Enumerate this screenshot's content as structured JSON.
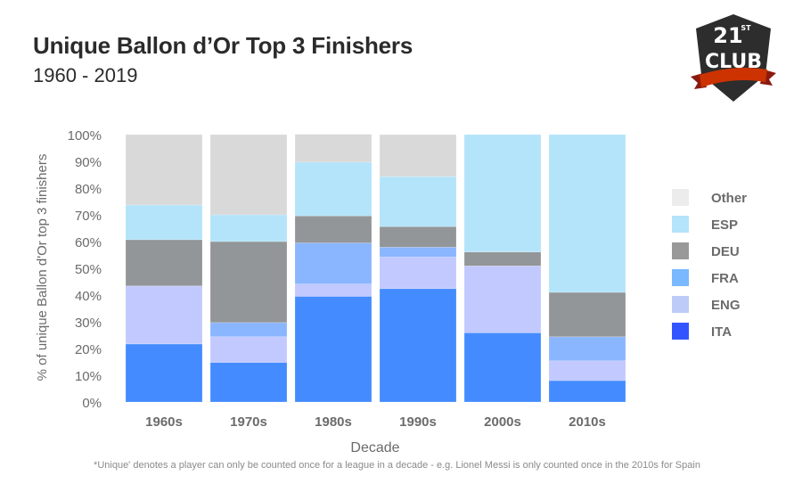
{
  "header": {
    "title": "Unique Ballon d’Or Top 3 Finishers",
    "subtitle": "1960 - 2019"
  },
  "logo": {
    "icon": "21st-club-shield-logo",
    "top_text": "21",
    "superscript": "ST",
    "bottom_text": "CLUB",
    "colors": {
      "shield": "#2d2d2d",
      "ribbon": "#cc3300",
      "ribbon_shadow": "#8a1a10",
      "text": "#ffffff"
    }
  },
  "footnote": "*Unique' denotes a player can only be counted once for a league in a decade - e.g. Lionel Messi is only counted once in the 2010s for Spain",
  "chart_data": {
    "type": "bar",
    "stacked": true,
    "title": "Unique Ballon d’Or Top 3 Finishers",
    "subtitle": "1960 - 2019",
    "xlabel": "Decade",
    "ylabel": "% of unique Ballon d'Or top 3 finishers",
    "ylim": [
      0,
      100
    ],
    "yticks": [
      0,
      10,
      20,
      30,
      40,
      50,
      60,
      70,
      80,
      90,
      100
    ],
    "ytick_labels": [
      "0%",
      "10%",
      "20%",
      "30%",
      "40%",
      "50%",
      "60%",
      "70%",
      "80%",
      "90%",
      "100%"
    ],
    "grid": false,
    "legend_position": "right",
    "categories": [
      "1960s",
      "1970s",
      "1980s",
      "1990s",
      "2000s",
      "2010s"
    ],
    "series": [
      {
        "name": "ITA",
        "color": "#448bff",
        "legend_color": "#3355ff",
        "values": [
          21.7,
          14.8,
          39.5,
          42.4,
          25.9,
          8.0
        ]
      },
      {
        "name": "ENG",
        "color": "#c2c9ff",
        "legend_color": "#bccbf7",
        "values": [
          21.7,
          9.6,
          4.6,
          11.8,
          25.0,
          7.4
        ]
      },
      {
        "name": "FRA",
        "color": "#8ab5ff",
        "legend_color": "#7ab8ff",
        "values": [
          0,
          5.3,
          15.4,
          3.7,
          0,
          9.0
        ]
      },
      {
        "name": "DEU",
        "color": "#939698",
        "legend_color": "#999999",
        "values": [
          17.3,
          30.3,
          10.1,
          7.7,
          5.2,
          16.6
        ]
      },
      {
        "name": "ESP",
        "color": "#b3e4fa",
        "legend_color": "#b3e4fa",
        "values": [
          13.0,
          10.0,
          20.1,
          18.7,
          43.9,
          59.0
        ]
      },
      {
        "name": "Other",
        "color": "#d9d9d9",
        "legend_color": "#ececec",
        "values": [
          26.3,
          30.0,
          10.4,
          15.7,
          0,
          0
        ]
      }
    ],
    "legend_order": [
      "Other",
      "ESP",
      "DEU",
      "FRA",
      "ENG",
      "ITA"
    ]
  }
}
